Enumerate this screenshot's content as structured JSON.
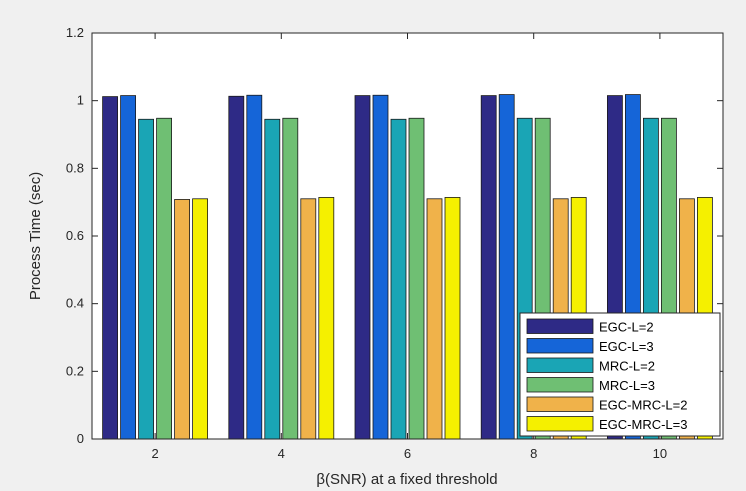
{
  "chart_data": {
    "type": "bar",
    "categories": [
      "2",
      "4",
      "6",
      "8",
      "10"
    ],
    "series": [
      {
        "name": "EGC-L=2",
        "values": [
          1.012,
          1.013,
          1.015,
          1.015,
          1.015
        ],
        "color": "#2e2a86"
      },
      {
        "name": "EGC-L=3",
        "values": [
          1.015,
          1.016,
          1.016,
          1.018,
          1.018
        ],
        "color": "#1565d8"
      },
      {
        "name": "MRC-L=2",
        "values": [
          0.945,
          0.945,
          0.945,
          0.948,
          0.948
        ],
        "color": "#1aa5b5"
      },
      {
        "name": "MRC-L=3",
        "values": [
          0.948,
          0.948,
          0.948,
          0.948,
          0.948
        ],
        "color": "#6fbf73"
      },
      {
        "name": "EGC-MRC-L=2",
        "values": [
          0.708,
          0.71,
          0.71,
          0.71,
          0.71
        ],
        "color": "#f0b24a"
      },
      {
        "name": "EGC-MRC-L=3",
        "values": [
          0.71,
          0.714,
          0.714,
          0.714,
          0.714
        ],
        "color": "#f5f000"
      }
    ],
    "xlabel": "β(SNR) at a fixed threshold",
    "ylabel": "Process Time (sec)",
    "ylim": [
      0,
      1.2
    ],
    "yticks": [
      "0",
      "0.2",
      "0.4",
      "0.6",
      "0.8",
      "1",
      "1.2"
    ],
    "grid": false,
    "legend_position": "bottom-right"
  }
}
